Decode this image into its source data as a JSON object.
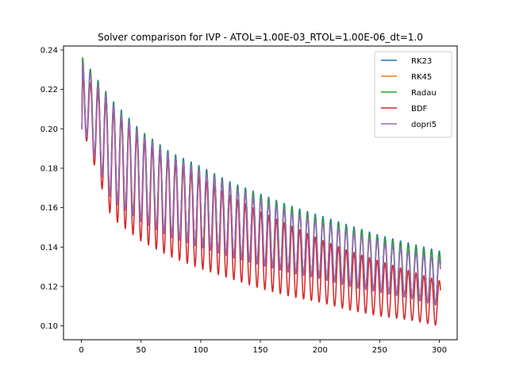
{
  "chart_data": {
    "type": "line",
    "title": "Solver comparison for IVP - ATOL=1.00E-03_RTOL=1.00E-06_dt=1.0",
    "xlabel": "",
    "ylabel": "",
    "xlim": [
      -15,
      315
    ],
    "ylim": [
      0.093,
      0.242
    ],
    "x_ticks": [
      0,
      50,
      100,
      150,
      200,
      250,
      300
    ],
    "y_ticks": [
      0.1,
      0.12,
      0.14,
      0.16,
      0.18,
      0.2,
      0.22,
      0.24
    ],
    "x_tick_labels": [
      "0",
      "50",
      "100",
      "150",
      "200",
      "250",
      "300"
    ],
    "y_tick_labels": [
      "0.10",
      "0.12",
      "0.14",
      "0.16",
      "0.18",
      "0.20",
      "0.22",
      "0.24"
    ],
    "grid": false,
    "legend_position": "upper right",
    "oscillation_period": 6.5,
    "series": [
      {
        "name": "RK23",
        "color": "#1f77b4",
        "start": 0.2,
        "peak": 0.236,
        "x": [
          1,
          25,
          50,
          75,
          100,
          125,
          150,
          175,
          200,
          225,
          250,
          275,
          300
        ],
        "max": [
          0.236,
          0.215,
          0.199,
          0.188,
          0.181,
          0.173,
          0.167,
          0.161,
          0.156,
          0.151,
          0.146,
          0.142,
          0.138
        ],
        "min": [
          0.201,
          0.164,
          0.153,
          0.145,
          0.14,
          0.135,
          0.131,
          0.127,
          0.124,
          0.12,
          0.117,
          0.114,
          0.11
        ]
      },
      {
        "name": "RK45",
        "color": "#ff7f0e",
        "start": 0.2,
        "peak": 0.234,
        "x": [
          1,
          25,
          50,
          75,
          100,
          125,
          150,
          175,
          200,
          225,
          250,
          275,
          300
        ],
        "max": [
          0.234,
          0.213,
          0.197,
          0.186,
          0.179,
          0.171,
          0.164,
          0.158,
          0.153,
          0.148,
          0.143,
          0.138,
          0.134
        ],
        "min": [
          0.201,
          0.164,
          0.153,
          0.145,
          0.14,
          0.135,
          0.131,
          0.127,
          0.124,
          0.12,
          0.117,
          0.114,
          0.11
        ]
      },
      {
        "name": "Radau",
        "color": "#2ca02c",
        "start": 0.2,
        "peak": 0.236,
        "x": [
          1,
          25,
          50,
          75,
          100,
          125,
          150,
          175,
          200,
          225,
          250,
          275,
          300
        ],
        "max": [
          0.236,
          0.214,
          0.198,
          0.187,
          0.18,
          0.172,
          0.166,
          0.16,
          0.155,
          0.15,
          0.145,
          0.141,
          0.137
        ],
        "min": [
          0.201,
          0.164,
          0.153,
          0.145,
          0.14,
          0.135,
          0.131,
          0.127,
          0.124,
          0.12,
          0.117,
          0.114,
          0.11
        ]
      },
      {
        "name": "BDF",
        "color": "#d62728",
        "start": 0.2,
        "peak": 0.228,
        "x": [
          1,
          25,
          50,
          75,
          100,
          125,
          150,
          175,
          200,
          225,
          250,
          275,
          300
        ],
        "max": [
          0.228,
          0.21,
          0.194,
          0.183,
          0.175,
          0.166,
          0.158,
          0.151,
          0.144,
          0.138,
          0.133,
          0.128,
          0.123
        ],
        "min": [
          0.2,
          0.155,
          0.143,
          0.135,
          0.129,
          0.124,
          0.119,
          0.115,
          0.112,
          0.108,
          0.105,
          0.103,
          0.1
        ]
      },
      {
        "name": "dopri5",
        "color": "#9467bd",
        "start": 0.2,
        "peak": 0.234,
        "x": [
          1,
          25,
          50,
          75,
          100,
          125,
          150,
          175,
          200,
          225,
          250,
          275,
          300
        ],
        "max": [
          0.234,
          0.213,
          0.197,
          0.186,
          0.179,
          0.171,
          0.164,
          0.158,
          0.153,
          0.148,
          0.143,
          0.138,
          0.134
        ],
        "min": [
          0.201,
          0.164,
          0.153,
          0.145,
          0.14,
          0.135,
          0.131,
          0.127,
          0.124,
          0.12,
          0.117,
          0.114,
          0.11
        ]
      }
    ]
  }
}
